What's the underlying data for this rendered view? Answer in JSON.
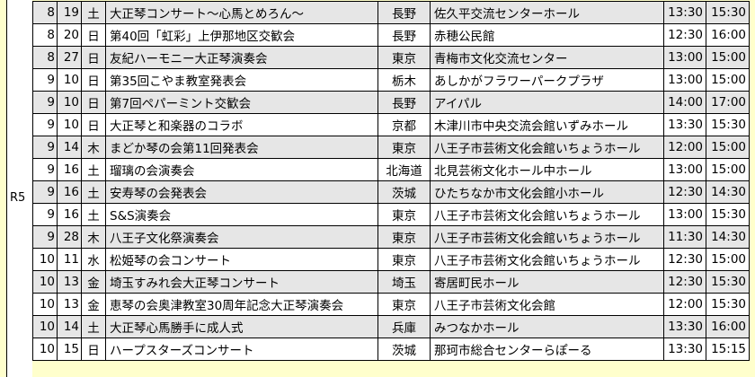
{
  "era": "R5",
  "rows": [
    [
      "8",
      "19",
      "土",
      "大正琴コンサート～心馬とめろん～",
      "長野",
      "佐久平交流センターホール",
      "13:30",
      "15:30"
    ],
    [
      "8",
      "20",
      "日",
      "第40回「虹彩」上伊那地区交歓会",
      "長野",
      "赤穂公民館",
      "12:30",
      "16:00"
    ],
    [
      "8",
      "27",
      "日",
      "友紀ハーモニー大正琴演奏会",
      "東京",
      "青梅市文化交流センター",
      "13:00",
      "15:00"
    ],
    [
      "9",
      "10",
      "日",
      "第35回こやま教室発表会",
      "栃木",
      "あしかがフラワーパークプラザ",
      "13:00",
      "15:00"
    ],
    [
      "9",
      "10",
      "日",
      "第7回ペパーミント交歓会",
      "長野",
      "アイパル",
      "14:00",
      "17:00"
    ],
    [
      "9",
      "10",
      "日",
      "大正琴と和楽器のコラボ",
      "京都",
      "木津川市中央交流会館いずみホール",
      "13:30",
      "15:30"
    ],
    [
      "9",
      "14",
      "木",
      "まどか琴の会第11回発表会",
      "東京",
      "八王子市芸術文化会館いちょうホール",
      "12:00",
      "15:00"
    ],
    [
      "9",
      "16",
      "土",
      "瑠璃の会演奏会",
      "北海道",
      "北見芸術文化ホール中ホール",
      "13:00",
      "15:00"
    ],
    [
      "9",
      "16",
      "土",
      "安寿琴の会発表会",
      "茨城",
      "ひたちなか市文化会館小ホール",
      "12:30",
      "14:30"
    ],
    [
      "9",
      "16",
      "土",
      "S&S演奏会",
      "東京",
      "八王子市芸術文化会館いちょうホール",
      "13:00",
      "15:30"
    ],
    [
      "9",
      "28",
      "木",
      "八王子文化祭演奏会",
      "東京",
      "八王子市芸術文化会館いちょうホール",
      "11:30",
      "14:30"
    ],
    [
      "10",
      "11",
      "水",
      "松姫琴の会コンサート",
      "東京",
      "八王子市芸術文化会館いちょうホール",
      "12:30",
      "15:00"
    ],
    [
      "10",
      "13",
      "金",
      "埼玉すみれ会大正琴コンサート",
      "埼玉",
      "寄居町民ホール",
      "12:30",
      "15:30"
    ],
    [
      "10",
      "13",
      "金",
      "恵琴の会奥津教室30周年記念大正琴演奏会",
      "東京",
      "八王子市芸術文化会館",
      "12:00",
      "15:30"
    ],
    [
      "10",
      "14",
      "土",
      "大正琴心馬勝手に成人式",
      "兵庫",
      "みつなかホール",
      "13:30",
      "16:00"
    ],
    [
      "10",
      "15",
      "日",
      "ハープスターズコンサート",
      "茨城",
      "那珂市総合センターらぽーる",
      "13:30",
      "15:15"
    ]
  ]
}
